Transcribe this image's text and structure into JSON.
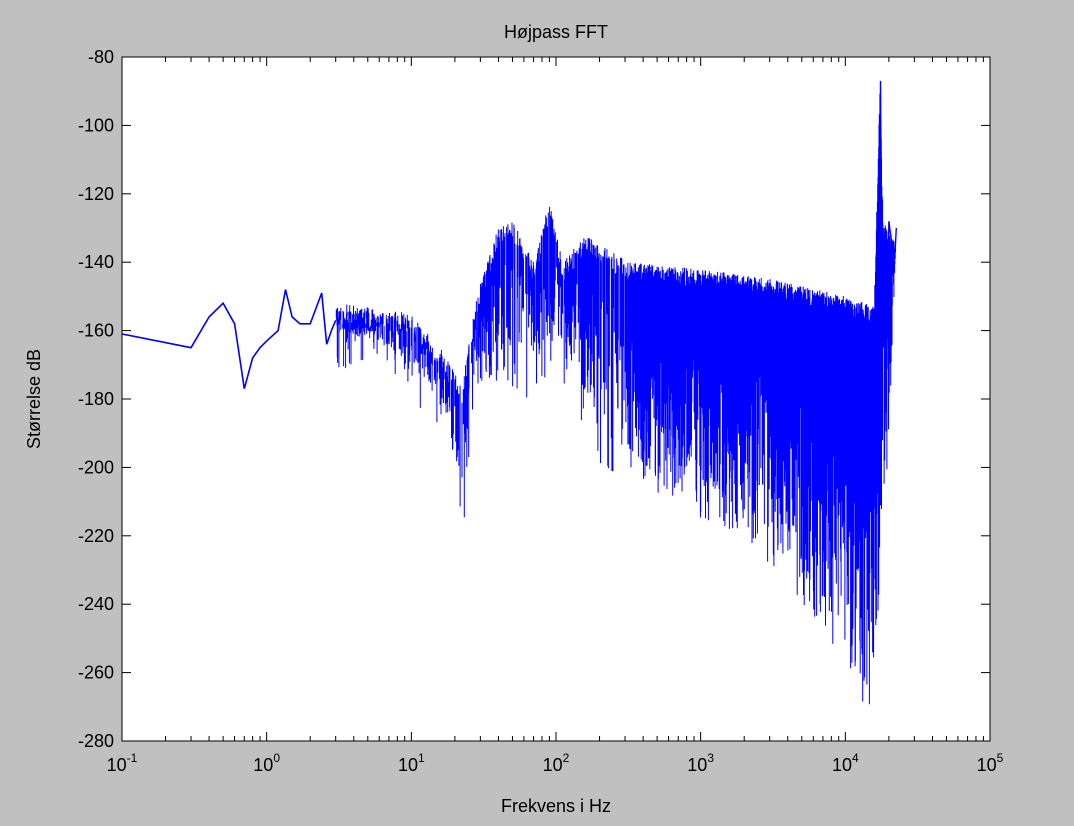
{
  "chart_data": {
    "type": "line",
    "title": "Højpass FFT",
    "xlabel": "Frekvens i Hz",
    "ylabel": "Størrelse dB",
    "x_scale": "log",
    "xlim": [
      0.1,
      100000
    ],
    "ylim": [
      -280,
      -80
    ],
    "grid": false,
    "line_color": "#0000ff",
    "background": "#c0c0c0",
    "plot_background": "#ffffff",
    "x_ticks": [
      {
        "value": 0.1,
        "base": "10",
        "exp": "-1"
      },
      {
        "value": 1,
        "base": "10",
        "exp": "0"
      },
      {
        "value": 10,
        "base": "10",
        "exp": "1"
      },
      {
        "value": 100,
        "base": "10",
        "exp": "2"
      },
      {
        "value": 1000,
        "base": "10",
        "exp": "3"
      },
      {
        "value": 10000,
        "base": "10",
        "exp": "4"
      },
      {
        "value": 100000,
        "base": "10",
        "exp": "5"
      }
    ],
    "y_ticks": [
      {
        "value": -80,
        "label": "-80"
      },
      {
        "value": -100,
        "label": "-100"
      },
      {
        "value": -120,
        "label": "-120"
      },
      {
        "value": -140,
        "label": "-140"
      },
      {
        "value": -160,
        "label": "-160"
      },
      {
        "value": -180,
        "label": "-180"
      },
      {
        "value": -200,
        "label": "-200"
      },
      {
        "value": -220,
        "label": "-220"
      },
      {
        "value": -240,
        "label": "-240"
      },
      {
        "value": -260,
        "label": "-260"
      },
      {
        "value": -280,
        "label": "-280"
      }
    ],
    "series": [
      {
        "x": [
          0.1,
          0.3,
          0.4,
          0.5,
          0.6,
          0.7,
          0.8,
          0.9,
          1.0,
          1.2,
          1.35,
          1.5,
          1.7,
          2.0,
          2.4,
          2.6,
          2.8,
          3.0,
          4.0,
          5.0,
          6.0,
          7.0,
          8.0,
          10.0,
          12.0,
          14.0,
          17.0,
          19.0,
          21.0,
          22.0,
          23.0,
          25.0,
          27.0,
          30.0,
          33.0,
          36.0,
          40.0,
          45.0,
          50.0,
          55.0,
          60.0,
          65.0,
          70.0,
          80.0,
          90.0,
          100.0,
          110.0,
          130.0,
          160.0,
          200.0,
          300.0,
          400.0,
          600.0,
          1000.0,
          2000.0,
          4000.0,
          6000.0,
          8000.0,
          10000.0,
          12000.0,
          15000.0,
          16000.0,
          17000.0,
          17500.0,
          18000.0,
          19000.0,
          20000.0,
          22000.0
        ],
        "y": [
          -161,
          -165,
          -156,
          -152,
          -158,
          -177,
          -168,
          -165,
          -163,
          -160,
          -148,
          -156,
          -158,
          -158,
          -149,
          -164,
          -160,
          -157,
          -156,
          -160,
          -162,
          -163,
          -161,
          -162,
          -165,
          -168,
          -175,
          -182,
          -202,
          -216,
          -186,
          -178,
          -165,
          -150,
          -145,
          -132,
          -130,
          -138,
          -145,
          -135,
          -150,
          -167,
          -140,
          -128,
          -122,
          -150,
          -175,
          -158,
          -195,
          -160,
          -185,
          -170,
          -200,
          -205,
          -215,
          -225,
          -240,
          -255,
          -262,
          -240,
          -230,
          -278,
          -228,
          -215,
          -87,
          -150,
          -140,
          -135
        ]
      }
    ]
  }
}
